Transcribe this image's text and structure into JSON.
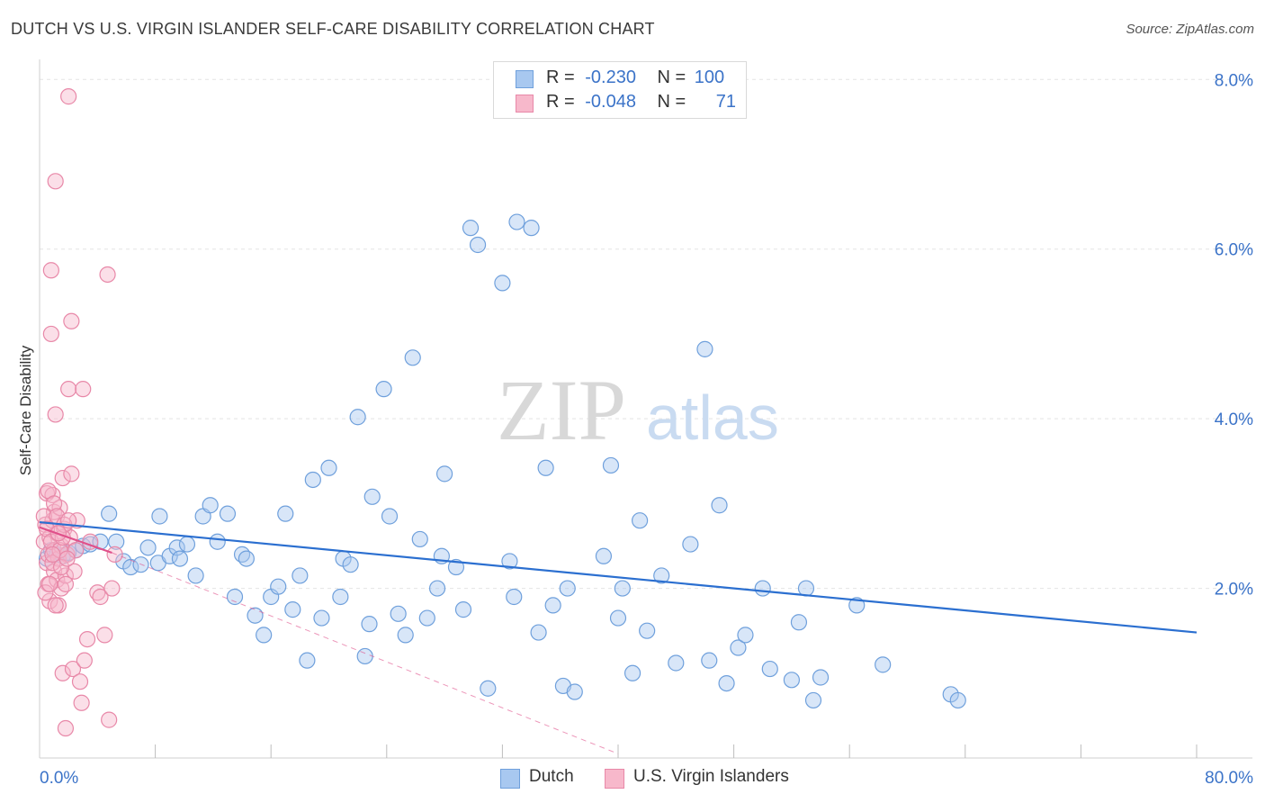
{
  "title": "DUTCH VS U.S. VIRGIN ISLANDER SELF-CARE DISABILITY CORRELATION CHART",
  "source": "Source: ZipAtlas.com",
  "watermark": {
    "zip": "ZIP",
    "atlas": "atlas"
  },
  "legend": {
    "dutch": {
      "r_label": "R =",
      "r_value": "-0.230",
      "n_label": "N =",
      "n_value": "100"
    },
    "usvi": {
      "r_label": "R =",
      "r_value": "-0.048",
      "n_label": "N =",
      "n_value": "71"
    }
  },
  "bottom_legend": {
    "dutch": "Dutch",
    "usvi": "U.S. Virgin Islanders"
  },
  "colors": {
    "dutch_fill": "#a8c8f0",
    "dutch_stroke": "#6fa0dc",
    "dutch_line": "#2b6fd0",
    "usvi_fill": "#f7b8cb",
    "usvi_stroke": "#e888a8",
    "usvi_line": "#e0508a",
    "axis_value": "#3b73c8",
    "grid": "#e4e4e4"
  },
  "chart_data": {
    "type": "scatter",
    "title": "DUTCH VS U.S. VIRGIN ISLANDER SELF-CARE DISABILITY CORRELATION CHART",
    "xlabel": "",
    "ylabel": "Self-Care Disability",
    "xlim": [
      0,
      80
    ],
    "ylim": [
      0,
      8.3
    ],
    "x_tick_labels": [
      "0.0%",
      "80.0%"
    ],
    "y_ticks": [
      2,
      4,
      6,
      8
    ],
    "y_tick_labels": [
      "2.0%",
      "4.0%",
      "6.0%",
      "8.0%"
    ],
    "grid": true,
    "legend_position": "top-center",
    "series": [
      {
        "name": "Dutch",
        "points": [
          [
            0.5,
            2.35
          ],
          [
            0.8,
            2.45
          ],
          [
            1.2,
            2.4
          ],
          [
            1.6,
            2.38
          ],
          [
            2.0,
            2.42
          ],
          [
            2.5,
            2.45
          ],
          [
            3.0,
            2.5
          ],
          [
            3.5,
            2.52
          ],
          [
            4.2,
            2.55
          ],
          [
            4.8,
            2.88
          ],
          [
            5.3,
            2.55
          ],
          [
            5.8,
            2.32
          ],
          [
            6.3,
            2.25
          ],
          [
            7.0,
            2.28
          ],
          [
            7.5,
            2.48
          ],
          [
            8.2,
            2.3
          ],
          [
            8.3,
            2.85
          ],
          [
            9.0,
            2.38
          ],
          [
            9.5,
            2.48
          ],
          [
            9.7,
            2.35
          ],
          [
            10.2,
            2.52
          ],
          [
            10.8,
            2.15
          ],
          [
            11.3,
            2.85
          ],
          [
            11.8,
            2.98
          ],
          [
            12.3,
            2.55
          ],
          [
            13.0,
            2.88
          ],
          [
            13.5,
            1.9
          ],
          [
            14.0,
            2.4
          ],
          [
            14.3,
            2.35
          ],
          [
            14.9,
            1.68
          ],
          [
            15.5,
            1.45
          ],
          [
            16.0,
            1.9
          ],
          [
            16.5,
            2.02
          ],
          [
            17.0,
            2.88
          ],
          [
            17.5,
            1.75
          ],
          [
            18.0,
            2.15
          ],
          [
            18.5,
            1.15
          ],
          [
            18.9,
            3.28
          ],
          [
            19.5,
            1.65
          ],
          [
            20.0,
            3.42
          ],
          [
            20.8,
            1.9
          ],
          [
            21.0,
            2.35
          ],
          [
            21.5,
            2.28
          ],
          [
            22.0,
            4.02
          ],
          [
            22.5,
            1.2
          ],
          [
            22.8,
            1.58
          ],
          [
            23.0,
            3.08
          ],
          [
            23.8,
            4.35
          ],
          [
            24.2,
            2.85
          ],
          [
            24.8,
            1.7
          ],
          [
            25.3,
            1.45
          ],
          [
            25.8,
            4.72
          ],
          [
            26.3,
            2.58
          ],
          [
            26.8,
            1.65
          ],
          [
            27.5,
            2.0
          ],
          [
            27.8,
            2.38
          ],
          [
            28.0,
            3.35
          ],
          [
            28.8,
            2.25
          ],
          [
            29.3,
            1.75
          ],
          [
            29.8,
            6.25
          ],
          [
            30.3,
            6.05
          ],
          [
            31.0,
            0.82
          ],
          [
            32.0,
            5.6
          ],
          [
            32.5,
            2.32
          ],
          [
            32.8,
            1.9
          ],
          [
            33.0,
            6.32
          ],
          [
            34.0,
            6.25
          ],
          [
            34.5,
            1.48
          ],
          [
            35.0,
            3.42
          ],
          [
            35.5,
            1.8
          ],
          [
            36.2,
            0.85
          ],
          [
            36.5,
            2.0
          ],
          [
            37.0,
            0.78
          ],
          [
            39.0,
            2.38
          ],
          [
            39.5,
            3.45
          ],
          [
            40.0,
            1.65
          ],
          [
            40.3,
            2.0
          ],
          [
            41.0,
            1.0
          ],
          [
            41.5,
            2.8
          ],
          [
            42.0,
            1.5
          ],
          [
            43.0,
            2.15
          ],
          [
            44.0,
            1.12
          ],
          [
            45.0,
            2.52
          ],
          [
            46.0,
            4.82
          ],
          [
            46.3,
            1.15
          ],
          [
            47.0,
            2.98
          ],
          [
            47.5,
            0.88
          ],
          [
            48.3,
            1.3
          ],
          [
            48.8,
            1.45
          ],
          [
            50.0,
            2.0
          ],
          [
            50.5,
            1.05
          ],
          [
            52.0,
            0.92
          ],
          [
            52.5,
            1.6
          ],
          [
            53.0,
            2.0
          ],
          [
            53.5,
            0.68
          ],
          [
            54.0,
            0.95
          ],
          [
            56.5,
            1.8
          ],
          [
            58.3,
            1.1
          ],
          [
            63.0,
            0.75
          ],
          [
            63.5,
            0.68
          ]
        ],
        "trend": {
          "x0": 0,
          "y0": 2.78,
          "x1": 80,
          "y1": 1.48
        }
      },
      {
        "name": "U.S. Virgin Islanders",
        "points": [
          [
            0.3,
            2.55
          ],
          [
            0.4,
            2.75
          ],
          [
            0.5,
            3.12
          ],
          [
            0.5,
            2.3
          ],
          [
            0.6,
            2.05
          ],
          [
            0.6,
            2.4
          ],
          [
            0.7,
            1.85
          ],
          [
            0.7,
            2.6
          ],
          [
            0.8,
            5.75
          ],
          [
            0.8,
            5.0
          ],
          [
            0.9,
            2.8
          ],
          [
            0.9,
            3.1
          ],
          [
            1.0,
            2.2
          ],
          [
            1.0,
            2.9
          ],
          [
            1.0,
            2.45
          ],
          [
            1.1,
            6.8
          ],
          [
            1.1,
            4.05
          ],
          [
            1.2,
            2.1
          ],
          [
            1.2,
            2.65
          ],
          [
            1.3,
            1.8
          ],
          [
            1.3,
            2.35
          ],
          [
            1.4,
            2.95
          ],
          [
            1.5,
            2.5
          ],
          [
            1.5,
            2.0
          ],
          [
            1.6,
            1.0
          ],
          [
            1.6,
            3.3
          ],
          [
            1.7,
            2.7
          ],
          [
            1.8,
            0.35
          ],
          [
            1.8,
            2.15
          ],
          [
            1.9,
            2.4
          ],
          [
            2.0,
            4.35
          ],
          [
            2.0,
            7.8
          ],
          [
            2.1,
            2.6
          ],
          [
            2.2,
            3.35
          ],
          [
            2.2,
            5.15
          ],
          [
            2.3,
            1.05
          ],
          [
            2.4,
            2.2
          ],
          [
            2.5,
            2.45
          ],
          [
            2.6,
            2.8
          ],
          [
            2.8,
            0.9
          ],
          [
            2.9,
            0.65
          ],
          [
            3.0,
            4.35
          ],
          [
            3.1,
            1.15
          ],
          [
            3.3,
            1.4
          ],
          [
            3.5,
            2.55
          ],
          [
            4.0,
            1.95
          ],
          [
            4.2,
            1.9
          ],
          [
            4.5,
            1.45
          ],
          [
            4.8,
            0.45
          ],
          [
            5.0,
            2.0
          ],
          [
            5.2,
            2.4
          ],
          [
            4.7,
            5.7
          ],
          [
            0.3,
            2.85
          ],
          [
            0.4,
            1.95
          ],
          [
            0.5,
            2.7
          ],
          [
            0.6,
            3.15
          ],
          [
            0.7,
            2.05
          ],
          [
            0.8,
            2.55
          ],
          [
            0.9,
            2.3
          ],
          [
            1.0,
            3.0
          ],
          [
            1.2,
            2.85
          ],
          [
            1.4,
            2.45
          ],
          [
            1.5,
            2.25
          ],
          [
            1.6,
            2.6
          ],
          [
            1.7,
            2.75
          ],
          [
            1.8,
            2.05
          ],
          [
            1.9,
            2.35
          ],
          [
            2.0,
            2.8
          ],
          [
            1.1,
            1.8
          ],
          [
            0.9,
            2.4
          ],
          [
            1.3,
            2.65
          ]
        ],
        "trend": {
          "x0": 0,
          "y0": 2.72,
          "x1": 5,
          "y1": 2.42
        },
        "trend_dashed_extension": {
          "x0": 5,
          "y0": 2.42,
          "x1": 40,
          "y1": 0.05
        }
      }
    ]
  }
}
